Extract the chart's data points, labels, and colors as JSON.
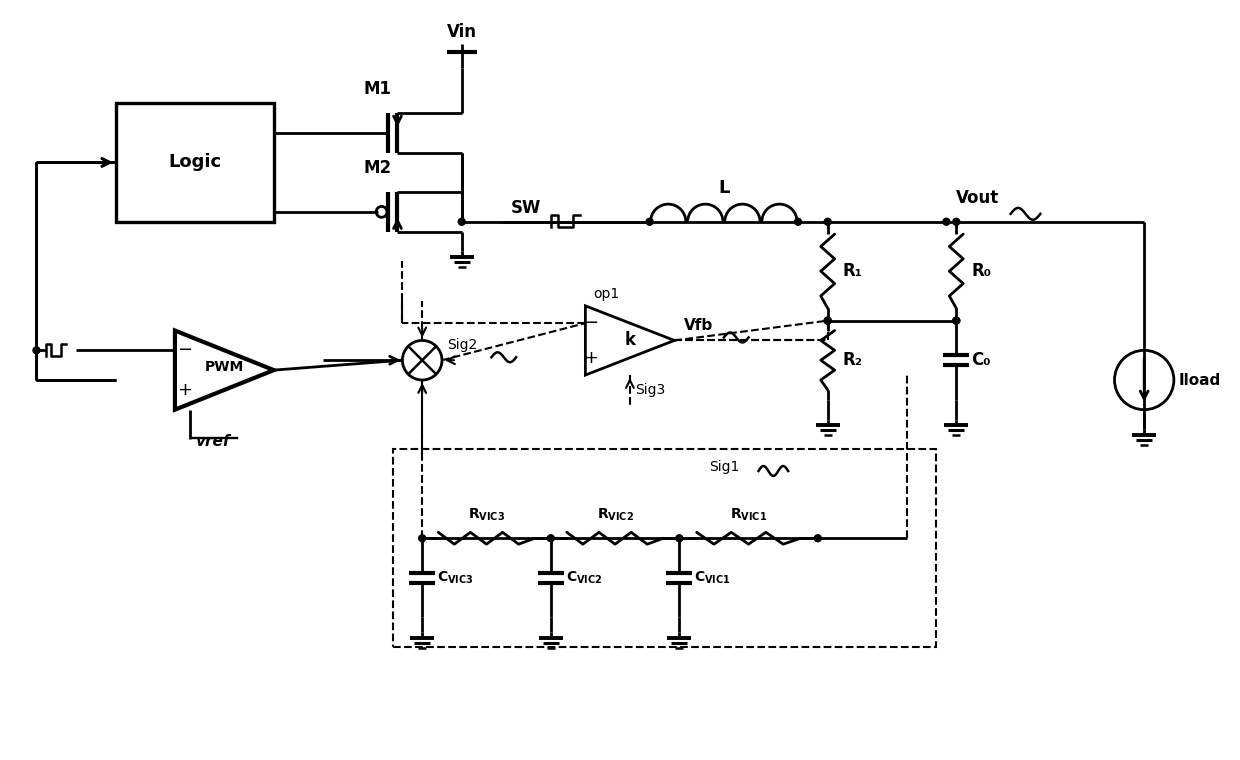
{
  "bg_color": "#ffffff",
  "lw": 2.0,
  "dlw": 1.5,
  "figsize": [
    12.4,
    7.6
  ],
  "dpi": 100,
  "xlim": [
    0,
    124
  ],
  "ylim": [
    0,
    76
  ]
}
